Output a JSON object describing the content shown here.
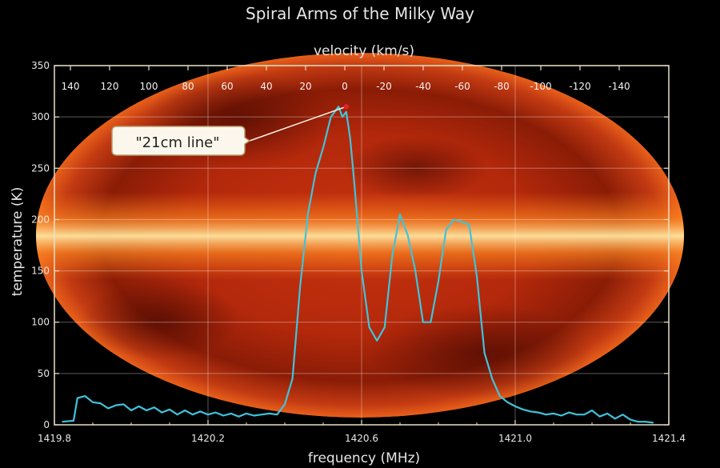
{
  "chart_data": {
    "type": "line",
    "title": "Spiral Arms of the Milky Way",
    "xlabel": "frequency (MHz)",
    "ylabel": "temperature (K)",
    "x2label": "velocity (km/s)",
    "xlim": [
      1419.8,
      1421.4
    ],
    "ylim": [
      0,
      350
    ],
    "x_ticks": [
      1419.8,
      1420.2,
      1420.6,
      1421.0,
      1421.4
    ],
    "x_tick_labels": [
      "1419.8",
      "1420.2",
      "1420.6",
      "1421.0",
      "1421.4"
    ],
    "y_ticks": [
      0,
      50,
      100,
      150,
      200,
      250,
      300,
      350
    ],
    "y_tick_labels": [
      "0",
      "50",
      "100",
      "150",
      "200",
      "250",
      "300",
      "350"
    ],
    "velocity_ticks": [
      140,
      120,
      100,
      80,
      60,
      40,
      20,
      0,
      -20,
      -40,
      -60,
      -80,
      -100,
      -120,
      -140
    ],
    "velocity_tick_labels": [
      "140",
      "120",
      "100",
      "80",
      "60",
      "40",
      "20",
      "0",
      "-20",
      "-40",
      "-60",
      "-80",
      "-100",
      "-120",
      "-140"
    ],
    "grid": true,
    "series": [
      {
        "color": "#3fc3dc",
        "x": [
          1419.82,
          1419.85,
          1419.86,
          1419.88,
          1419.9,
          1419.92,
          1419.94,
          1419.96,
          1419.98,
          1420.0,
          1420.02,
          1420.04,
          1420.06,
          1420.08,
          1420.1,
          1420.12,
          1420.14,
          1420.16,
          1420.18,
          1420.2,
          1420.22,
          1420.24,
          1420.26,
          1420.28,
          1420.3,
          1420.32,
          1420.34,
          1420.36,
          1420.38,
          1420.4,
          1420.42,
          1420.44,
          1420.46,
          1420.48,
          1420.5,
          1420.52,
          1420.54,
          1420.55,
          1420.56,
          1420.57,
          1420.58,
          1420.6,
          1420.62,
          1420.64,
          1420.66,
          1420.68,
          1420.7,
          1420.72,
          1420.74,
          1420.76,
          1420.78,
          1420.8,
          1420.82,
          1420.84,
          1420.86,
          1420.88,
          1420.9,
          1420.92,
          1420.94,
          1420.96,
          1420.98,
          1421.0,
          1421.02,
          1421.04,
          1421.06,
          1421.08,
          1421.1,
          1421.12,
          1421.14,
          1421.16,
          1421.18,
          1421.2,
          1421.22,
          1421.24,
          1421.26,
          1421.28,
          1421.3,
          1421.32,
          1421.34,
          1421.36
        ],
        "y": [
          3,
          4,
          26,
          28,
          22,
          21,
          16,
          19,
          20,
          14,
          18,
          14,
          17,
          12,
          15,
          10,
          14,
          10,
          13,
          10,
          12,
          9,
          11,
          8,
          11,
          9,
          10,
          11,
          10,
          20,
          45,
          135,
          205,
          245,
          270,
          300,
          310,
          300,
          305,
          280,
          240,
          150,
          95,
          82,
          95,
          165,
          205,
          185,
          150,
          100,
          100,
          140,
          190,
          200,
          198,
          195,
          145,
          70,
          45,
          28,
          22,
          18,
          15,
          13,
          12,
          10,
          11,
          9,
          12,
          10,
          10,
          14,
          8,
          11,
          6,
          10,
          5,
          3,
          3,
          2
        ]
      }
    ],
    "annotations": [
      {
        "text": "\"21cm line\"",
        "x": 1420.56,
        "y": 310
      }
    ]
  },
  "colors": {
    "background": "#000000",
    "axis": "#e8e2c8",
    "grid": "#ffffff",
    "line": "#3fc3dc",
    "peak_marker": "#e8202a",
    "callout_fill": "#fbf7ec",
    "callout_stroke": "#b59a6a"
  }
}
